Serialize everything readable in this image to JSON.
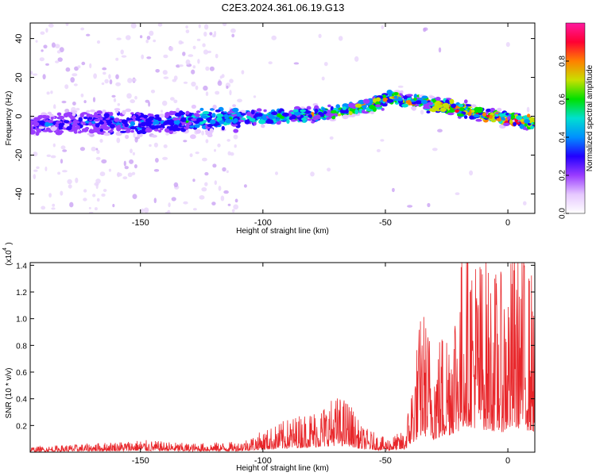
{
  "chart_data": [
    {
      "type": "heatmap",
      "title": "C2E3.2024.361.06.19.G13",
      "xlabel": "Height of straight line (km)",
      "ylabel": "Frequency (Hz)",
      "xlim": [
        -195,
        11
      ],
      "ylim": [
        -50,
        48
      ],
      "xticks": [
        -150,
        -100,
        -50,
        0
      ],
      "yticks": [
        40,
        20,
        0,
        -20,
        -40
      ],
      "grid": false,
      "colorbar": {
        "label": "Normalized spectral amplitude",
        "range": [
          0,
          1
        ],
        "ticks": [
          "0.0",
          "0.2",
          "0.4",
          "0.6",
          "0.8"
        ],
        "colors": [
          "#ffffff",
          "#e6c8ff",
          "#9a3cff",
          "#2200ff",
          "#0090ff",
          "#00e0d0",
          "#00e000",
          "#c8e000",
          "#ff8000",
          "#ff0033",
          "#ff1aa0"
        ]
      },
      "ridge": [
        {
          "x": -190,
          "y": -4
        },
        {
          "x": -170,
          "y": -3
        },
        {
          "x": -150,
          "y": -4
        },
        {
          "x": -130,
          "y": -2
        },
        {
          "x": -110,
          "y": -1
        },
        {
          "x": -90,
          "y": 0
        },
        {
          "x": -70,
          "y": 2
        },
        {
          "x": -55,
          "y": 6
        },
        {
          "x": -48,
          "y": 10
        },
        {
          "x": -40,
          "y": 8
        },
        {
          "x": -25,
          "y": 5
        },
        {
          "x": -10,
          "y": 1
        },
        {
          "x": 0,
          "y": -1
        },
        {
          "x": 10,
          "y": -3
        }
      ]
    },
    {
      "type": "line",
      "xlabel": "Height of straight line (km)",
      "ylabel": "SNR (10 * v/v)",
      "yscale_label": "(x10",
      "yscale_exponent": "4",
      "xlim": [
        -195,
        11
      ],
      "ylim": [
        0,
        1.42
      ],
      "xticks": [
        -150,
        -100,
        -50,
        0
      ],
      "yticks": [
        0.2,
        0.4,
        0.6,
        0.8,
        1.0,
        1.2,
        1.4
      ],
      "color": "#e8262a",
      "grid": false,
      "envelope": [
        {
          "x": -195,
          "y": 0.03
        },
        {
          "x": -170,
          "y": 0.05
        },
        {
          "x": -150,
          "y": 0.07
        },
        {
          "x": -130,
          "y": 0.05
        },
        {
          "x": -110,
          "y": 0.06
        },
        {
          "x": -100,
          "y": 0.12
        },
        {
          "x": -88,
          "y": 0.2
        },
        {
          "x": -78,
          "y": 0.25
        },
        {
          "x": -70,
          "y": 0.32
        },
        {
          "x": -65,
          "y": 0.3
        },
        {
          "x": -60,
          "y": 0.15
        },
        {
          "x": -50,
          "y": 0.08
        },
        {
          "x": -42,
          "y": 0.12
        },
        {
          "x": -38,
          "y": 0.55
        },
        {
          "x": -35,
          "y": 0.85
        },
        {
          "x": -30,
          "y": 0.62
        },
        {
          "x": -25,
          "y": 0.78
        },
        {
          "x": -20,
          "y": 1.05
        },
        {
          "x": -17,
          "y": 1.3
        },
        {
          "x": -12,
          "y": 1.15
        },
        {
          "x": -6,
          "y": 1.05
        },
        {
          "x": -2,
          "y": 1.0
        },
        {
          "x": 4,
          "y": 1.2
        },
        {
          "x": 11,
          "y": 1.0
        }
      ]
    }
  ]
}
